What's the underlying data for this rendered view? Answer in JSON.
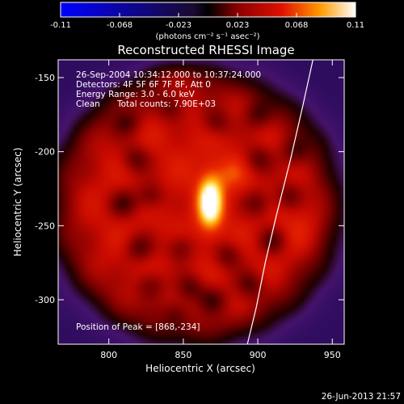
{
  "chart_data": {
    "type": "heatmap",
    "title": "Reconstructed RHESSI Image",
    "xlabel": "Heliocentric X (arcsec)",
    "ylabel": "Heliocentric Y (arcsec)",
    "xlim": [
      766,
      958
    ],
    "ylim": [
      -330,
      -138
    ],
    "x_ticks": [
      800,
      850,
      900,
      950
    ],
    "y_ticks": [
      -150,
      -200,
      -250,
      -300
    ],
    "colorbar": {
      "min": -0.11,
      "max": 0.11,
      "ticks": [
        "-0.11",
        "-0.068",
        "-0.023",
        "0.023",
        "0.068",
        "0.11"
      ],
      "unit_label": "(photons cm⁻² s⁻¹ asec⁻²)",
      "colormap": "blue-white-red"
    },
    "annotations": {
      "time_range": "26-Sep-2004 10:34:12.000 to 10:37:24.000",
      "detectors": "Detectors: 4F 5F 6F 7F 8F, Att 0",
      "energy": "Energy Range: 3.0 - 6.0 keV",
      "method": "Clean",
      "counts": "Total counts: 7.90E+03",
      "peak": "Position of Peak = [868,-234]"
    },
    "peak": {
      "x": 868,
      "y": -234,
      "value": 0.11
    },
    "background_value": -0.02,
    "disk_level": 0.045,
    "source_model": [
      {
        "x": 868,
        "y": -234,
        "sx": 6,
        "sy": 13,
        "amp": 0.085
      },
      {
        "x": 882,
        "y": -215,
        "sx": 8,
        "sy": 8,
        "amp": 0.02
      },
      {
        "x": 845,
        "y": -150,
        "sx": 10,
        "sy": 6,
        "amp": 0.02
      },
      {
        "x": 930,
        "y": -250,
        "sx": 12,
        "sy": 14,
        "amp": 0.012
      }
    ],
    "dark_holes": [
      [
        812,
        -180
      ],
      [
        842,
        -170
      ],
      [
        872,
        -180
      ],
      [
        900,
        -175
      ],
      [
        818,
        -205
      ],
      [
        900,
        -205
      ],
      [
        925,
        -200
      ],
      [
        810,
        -235
      ],
      [
        828,
        -230
      ],
      [
        900,
        -235
      ],
      [
        920,
        -230
      ],
      [
        910,
        -260
      ],
      [
        820,
        -265
      ],
      [
        848,
        -265
      ],
      [
        828,
        -290
      ],
      [
        855,
        -292
      ],
      [
        880,
        -270
      ],
      [
        895,
        -290
      ],
      [
        870,
        -300
      ],
      [
        845,
        -310
      ]
    ],
    "limb_curve": [
      [
        937,
        -138
      ],
      [
        930,
        -170
      ],
      [
        922,
        -205
      ],
      [
        912,
        -245
      ],
      [
        905,
        -275
      ],
      [
        899,
        -305
      ],
      [
        893,
        -330
      ]
    ]
  },
  "footer": {
    "date": "26-Jun-2013 21:57"
  }
}
